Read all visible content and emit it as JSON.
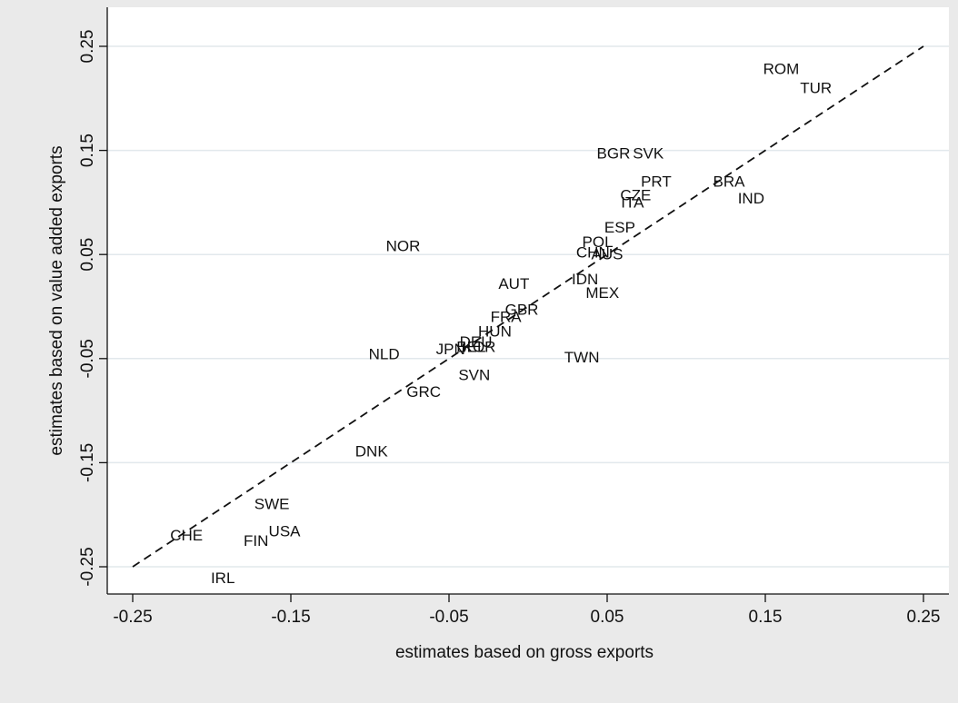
{
  "chart_data": {
    "type": "scatter",
    "title": "",
    "xlabel": "estimates based on gross exports",
    "ylabel": "estimates based on value added exports",
    "xlim": [
      -0.26,
      0.26
    ],
    "ylim": [
      -0.27,
      0.26
    ],
    "xticks": [
      -0.25,
      -0.15,
      -0.05,
      0.05,
      0.15,
      0.25
    ],
    "xtick_labels": [
      "-0.25",
      "-0.15",
      "-0.05",
      "0.05",
      "0.15",
      "0.25"
    ],
    "yticks": [
      -0.25,
      -0.15,
      -0.05,
      0.05,
      0.15,
      0.25
    ],
    "ytick_labels": [
      "-0.25",
      "-0.15",
      "-0.05",
      "0.05",
      "0.15",
      "0.25"
    ],
    "grid": true,
    "reference_line": {
      "style": "dashed",
      "from": [
        -0.25,
        -0.25
      ],
      "to": [
        0.25,
        0.25
      ]
    },
    "points": [
      {
        "label": "ROM",
        "x": 0.16,
        "y": 0.228
      },
      {
        "label": "TUR",
        "x": 0.182,
        "y": 0.21
      },
      {
        "label": "BGR",
        "x": 0.054,
        "y": 0.147
      },
      {
        "label": "SVK",
        "x": 0.076,
        "y": 0.147
      },
      {
        "label": "PRT",
        "x": 0.081,
        "y": 0.12
      },
      {
        "label": "BRA",
        "x": 0.127,
        "y": 0.12
      },
      {
        "label": "CZE",
        "x": 0.068,
        "y": 0.107
      },
      {
        "label": "IND",
        "x": 0.141,
        "y": 0.104
      },
      {
        "label": "ITA",
        "x": 0.066,
        "y": 0.1
      },
      {
        "label": "ESP",
        "x": 0.058,
        "y": 0.076
      },
      {
        "label": "POL",
        "x": 0.044,
        "y": 0.062
      },
      {
        "label": "NOR",
        "x": -0.079,
        "y": 0.058
      },
      {
        "label": "CHN",
        "x": 0.041,
        "y": 0.052
      },
      {
        "label": "AUS",
        "x": 0.05,
        "y": 0.05
      },
      {
        "label": "AUT",
        "x": -0.009,
        "y": 0.022
      },
      {
        "label": "IDN",
        "x": 0.036,
        "y": 0.026
      },
      {
        "label": "MEX",
        "x": 0.047,
        "y": 0.013
      },
      {
        "label": "GBR",
        "x": -0.004,
        "y": -0.003
      },
      {
        "label": "FRA",
        "x": -0.014,
        "y": -0.01
      },
      {
        "label": "HUN",
        "x": -0.021,
        "y": -0.024
      },
      {
        "label": "DEU",
        "x": -0.033,
        "y": -0.034
      },
      {
        "label": "BEL",
        "x": -0.036,
        "y": -0.039
      },
      {
        "label": "KOR",
        "x": -0.031,
        "y": -0.039
      },
      {
        "label": "JPN",
        "x": -0.049,
        "y": -0.041
      },
      {
        "label": "NLD",
        "x": -0.091,
        "y": -0.046
      },
      {
        "label": "TWN",
        "x": 0.034,
        "y": -0.049
      },
      {
        "label": "SVN",
        "x": -0.034,
        "y": -0.066
      },
      {
        "label": "GRC",
        "x": -0.066,
        "y": -0.082
      },
      {
        "label": "DNK",
        "x": -0.099,
        "y": -0.139
      },
      {
        "label": "SWE",
        "x": -0.162,
        "y": -0.19
      },
      {
        "label": "USA",
        "x": -0.154,
        "y": -0.216
      },
      {
        "label": "CHE",
        "x": -0.216,
        "y": -0.22
      },
      {
        "label": "FIN",
        "x": -0.172,
        "y": -0.225
      },
      {
        "label": "IRL",
        "x": -0.193,
        "y": -0.261
      }
    ]
  }
}
